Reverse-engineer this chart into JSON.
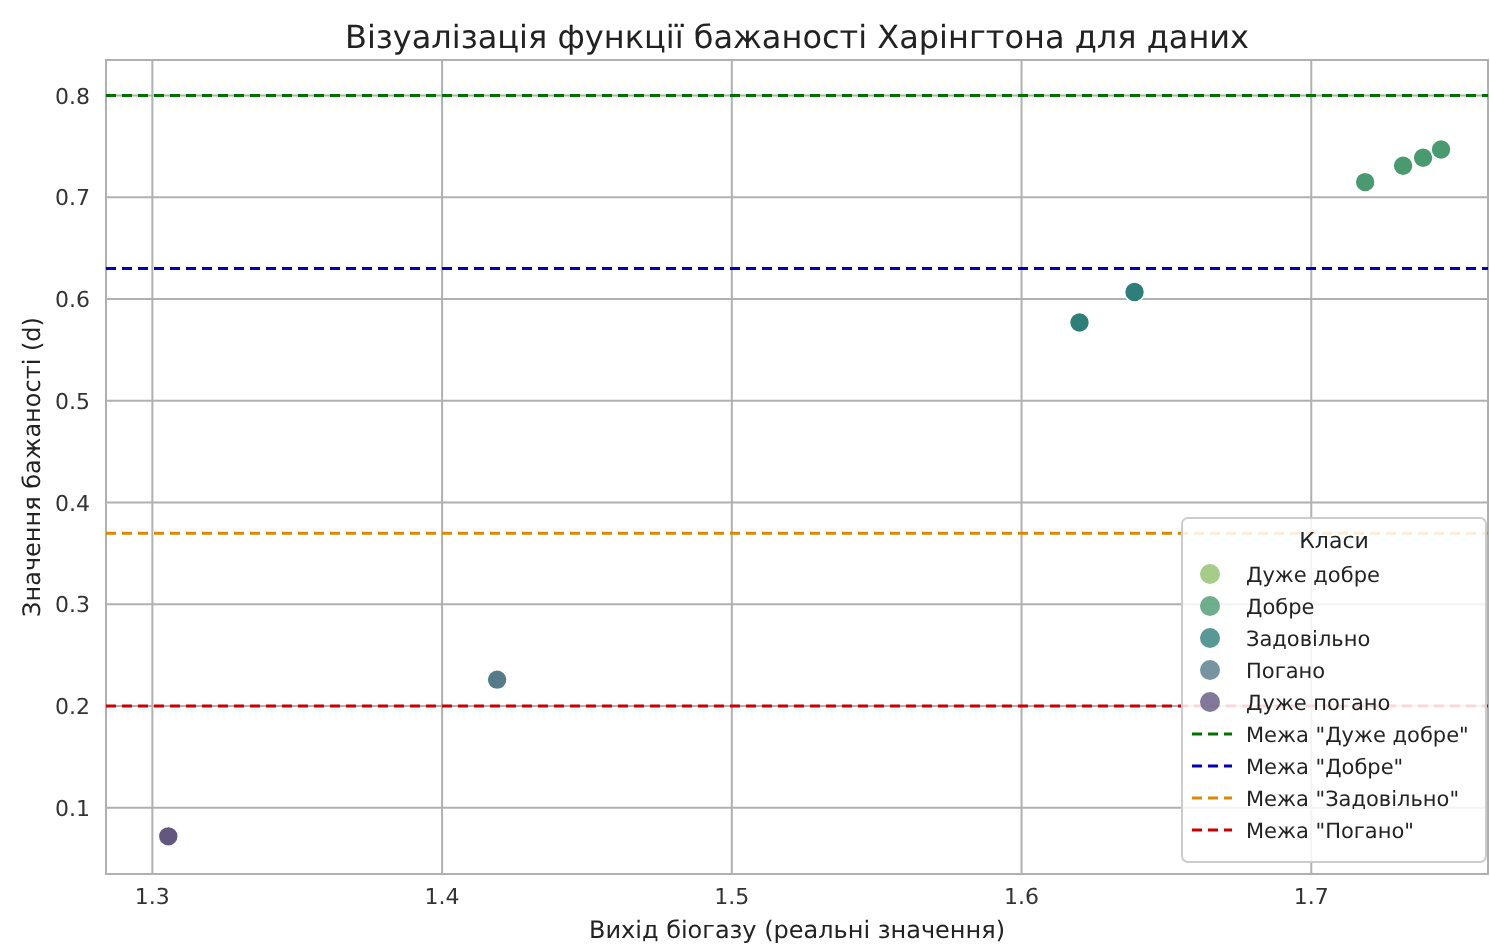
{
  "chart_data": {
    "type": "scatter",
    "title": "Візуалізація функції бажаності Харінгтона для даних",
    "xlabel": "Вихід біогазу (реальні значення)",
    "ylabel": "Значення бажаності (d)",
    "legend_title": "Класи",
    "legend": "bottom right",
    "grid": true,
    "marker": "circle",
    "xlim": [
      1.284,
      1.761
    ],
    "xticks": [
      1.3,
      1.4,
      1.5,
      1.6,
      1.7
    ],
    "ylim": [
      0.035,
      0.835
    ],
    "yticks": [
      0.1,
      0.2,
      0.3,
      0.4,
      0.5,
      0.6,
      0.7,
      0.8
    ],
    "series": [
      {
        "name": "Дуже добре",
        "color": "#8fbf6a"
      },
      {
        "name": "Добре",
        "color": "#4a9a70",
        "x": [
          1.7186,
          1.7317,
          1.7386,
          1.7448
        ],
        "values": [
          0.715,
          0.731,
          0.739,
          0.747
        ]
      },
      {
        "name": "Задовільно",
        "color": "#2e7f7a",
        "x": [
          1.62,
          1.639
        ],
        "values": [
          0.577,
          0.607
        ]
      },
      {
        "name": "Погано",
        "color": "#557a8a",
        "x": [
          1.419
        ],
        "values": [
          0.226
        ]
      },
      {
        "name": "Дуже погано",
        "color": "#62587f",
        "x": [
          1.3055
        ],
        "values": [
          0.072
        ]
      }
    ],
    "ref_lines": [
      {
        "axis": "y",
        "value": 0.8,
        "label": "Межа \"Дуже добре\"",
        "color": "#007000",
        "line_style": "dashed"
      },
      {
        "axis": "y",
        "value": 0.63,
        "label": "Межа \"Добре\"",
        "color": "#0000bb",
        "line_style": "dashed"
      },
      {
        "axis": "y",
        "value": 0.37,
        "label": "Межа \"Задовільно\"",
        "color": "#dd8800",
        "line_style": "dashed"
      },
      {
        "axis": "y",
        "value": 0.2,
        "label": "Межа \"Погано\"",
        "color": "#cc0000",
        "line_style": "dashed"
      }
    ]
  }
}
